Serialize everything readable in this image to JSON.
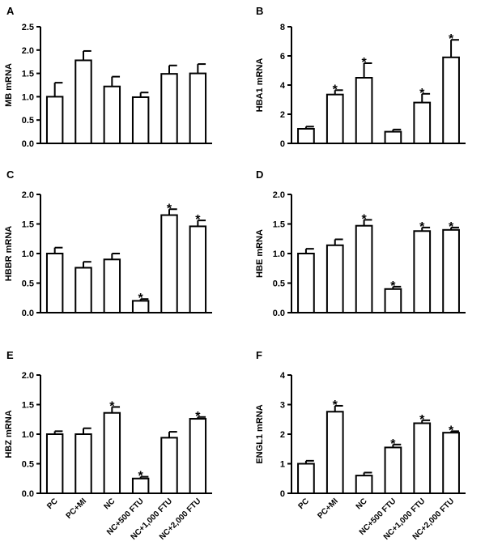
{
  "chart_data": [
    {
      "type": "bar",
      "panel": "A",
      "ylabel": "MB mRNA",
      "categories": [
        "PC",
        "PC+MI",
        "NC",
        "NC+500 FTU",
        "NC+1,000 FTU",
        "NC+2,000 FTU"
      ],
      "values": [
        1.0,
        1.78,
        1.22,
        0.99,
        1.49,
        1.5
      ],
      "errors": [
        0.3,
        0.2,
        0.21,
        0.1,
        0.18,
        0.2
      ],
      "significant": [
        false,
        false,
        false,
        false,
        false,
        false
      ],
      "ylim": [
        0,
        2.5
      ],
      "yticks": [
        "0.0",
        "0.5",
        "1.0",
        "1.5",
        "2.0",
        "2.5"
      ],
      "show_xticklabels": false
    },
    {
      "type": "bar",
      "panel": "B",
      "ylabel": "HBA1 mRNA",
      "categories": [
        "PC",
        "PC+MI",
        "NC",
        "NC+500 FTU",
        "NC+1,000 FTU",
        "NC+2,000 FTU"
      ],
      "values": [
        1.0,
        3.35,
        4.5,
        0.8,
        2.8,
        5.9
      ],
      "errors": [
        0.15,
        0.3,
        1.0,
        0.15,
        0.6,
        1.2
      ],
      "significant": [
        false,
        true,
        true,
        false,
        true,
        true
      ],
      "ylim": [
        0,
        8
      ],
      "yticks": [
        "0",
        "2",
        "4",
        "6",
        "8"
      ],
      "show_xticklabels": false
    },
    {
      "type": "bar",
      "panel": "C",
      "ylabel": "HBBR mRNA",
      "categories": [
        "PC",
        "PC+MI",
        "NC",
        "NC+500 FTU",
        "NC+1,000 FTU",
        "NC+2,000 FTU"
      ],
      "values": [
        1.0,
        0.76,
        0.9,
        0.2,
        1.65,
        1.46
      ],
      "errors": [
        0.1,
        0.1,
        0.1,
        0.03,
        0.1,
        0.1
      ],
      "significant": [
        false,
        false,
        false,
        true,
        true,
        true
      ],
      "ylim": [
        0,
        2.0
      ],
      "yticks": [
        "0.0",
        "0.5",
        "1.0",
        "1.5",
        "2.0"
      ],
      "show_xticklabels": false
    },
    {
      "type": "bar",
      "panel": "D",
      "ylabel": "HBE mRNA",
      "categories": [
        "PC",
        "PC+MI",
        "NC",
        "NC+500 FTU",
        "NC+1,000 FTU",
        "NC+2,000 FTU"
      ],
      "values": [
        1.0,
        1.14,
        1.47,
        0.4,
        1.38,
        1.4
      ],
      "errors": [
        0.08,
        0.1,
        0.1,
        0.04,
        0.06,
        0.04
      ],
      "significant": [
        false,
        false,
        true,
        true,
        true,
        true
      ],
      "ylim": [
        0,
        2.0
      ],
      "yticks": [
        "0.0",
        "0.5",
        "1.0",
        "1.5",
        "2.0"
      ],
      "show_xticklabels": false
    },
    {
      "type": "bar",
      "panel": "E",
      "ylabel": "HBZ mRNA",
      "categories": [
        "PC",
        "PC+MI",
        "NC",
        "NC+500 FTU",
        "NC+1,000 FTU",
        "NC+2,000 FTU"
      ],
      "values": [
        1.0,
        1.0,
        1.36,
        0.25,
        0.94,
        1.26
      ],
      "errors": [
        0.05,
        0.1,
        0.1,
        0.03,
        0.1,
        0.03
      ],
      "significant": [
        false,
        false,
        true,
        true,
        false,
        true
      ],
      "ylim": [
        0,
        2.0
      ],
      "yticks": [
        "0.0",
        "0.5",
        "1.0",
        "1.5",
        "2.0"
      ],
      "show_xticklabels": true
    },
    {
      "type": "bar",
      "panel": "F",
      "ylabel": "ENGL1 mRNA",
      "categories": [
        "PC",
        "PC+MI",
        "NC",
        "NC+500 FTU",
        "NC+1,000 FTU",
        "NC+2,000 FTU"
      ],
      "values": [
        1.0,
        2.76,
        0.6,
        1.55,
        2.37,
        2.05
      ],
      "errors": [
        0.1,
        0.2,
        0.1,
        0.1,
        0.1,
        0.05
      ],
      "significant": [
        false,
        true,
        false,
        true,
        true,
        true
      ],
      "ylim": [
        0,
        4
      ],
      "yticks": [
        "0",
        "1",
        "2",
        "3",
        "4"
      ],
      "show_xticklabels": true
    }
  ],
  "significance_marker": "*"
}
